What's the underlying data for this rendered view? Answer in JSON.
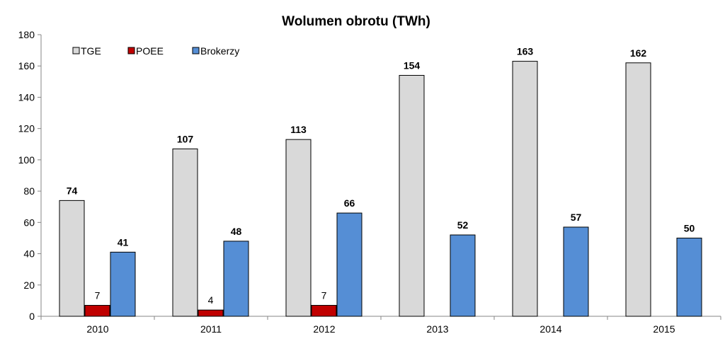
{
  "chart_data": {
    "type": "bar",
    "title": "Wolumen obrotu (TWh)",
    "xlabel": "",
    "ylabel": "",
    "categories": [
      "2010",
      "2011",
      "2012",
      "2013",
      "2014",
      "2015"
    ],
    "ylim": [
      0,
      180
    ],
    "yticks": [
      0,
      20,
      40,
      60,
      80,
      100,
      120,
      140,
      160,
      180
    ],
    "grid": false,
    "legend_position": "top-left",
    "series": [
      {
        "name": "TGE",
        "color": "#d9d9d9",
        "values": [
          74,
          107,
          113,
          154,
          163,
          162
        ],
        "labels": [
          "74",
          "107",
          "113",
          "154",
          "163",
          "162"
        ],
        "label_bold": true
      },
      {
        "name": "POEE",
        "color": "#c00000",
        "values": [
          7,
          4,
          7,
          null,
          null,
          null
        ],
        "labels": [
          "7",
          "4",
          "7",
          "",
          "",
          ""
        ],
        "label_bold": false
      },
      {
        "name": "Brokerzy",
        "color": "#558ed5",
        "values": [
          41,
          48,
          66,
          52,
          57,
          50
        ],
        "labels": [
          "41",
          "48",
          "66",
          "52",
          "57",
          "50"
        ],
        "label_bold": true
      }
    ]
  }
}
